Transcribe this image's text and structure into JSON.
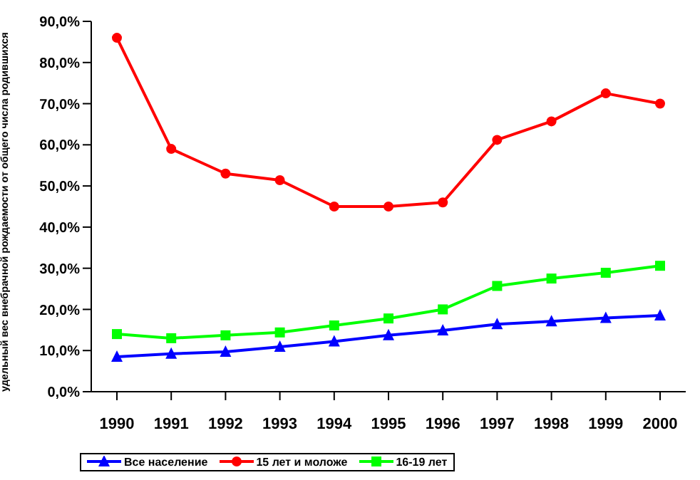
{
  "chart_data": {
    "type": "line",
    "ylabel": "удельный вес внебрачной рождаемости от общего числа родившихся",
    "categories": [
      "1990",
      "1991",
      "1992",
      "1993",
      "1994",
      "1995",
      "1996",
      "1997",
      "1998",
      "1999",
      "2000"
    ],
    "series": [
      {
        "name": "Все население",
        "color": "#0000ff",
        "marker": "triangle",
        "values": [
          8.5,
          9.2,
          9.7,
          10.9,
          12.2,
          13.7,
          14.9,
          16.4,
          17.1,
          17.9,
          18.5
        ]
      },
      {
        "name": "15 лет и моложе",
        "color": "#ff0000",
        "marker": "circle",
        "values": [
          86,
          59,
          53,
          51.4,
          45,
          45,
          46,
          61.2,
          65.7,
          72.5,
          70
        ]
      },
      {
        "name": "16-19 лет",
        "color": "#00ff00",
        "marker": "square",
        "values": [
          14,
          13,
          13.7,
          14.4,
          16.1,
          17.8,
          20,
          25.7,
          27.5,
          28.9,
          30.6
        ]
      }
    ],
    "ylim": [
      0,
      90
    ],
    "yticks": [
      {
        "value": 0,
        "label": "0,0%"
      },
      {
        "value": 10,
        "label": "10,0%"
      },
      {
        "value": 20,
        "label": "20,0%"
      },
      {
        "value": 30,
        "label": "30,0%"
      },
      {
        "value": 40,
        "label": "40,0%"
      },
      {
        "value": 50,
        "label": "50,0%"
      },
      {
        "value": 60,
        "label": "60,0%"
      },
      {
        "value": 70,
        "label": "70,0%"
      },
      {
        "value": 80,
        "label": "80,0%"
      },
      {
        "value": 90,
        "label": "90,0%"
      }
    ],
    "grid": false,
    "legend": "bottom",
    "line_style": "solid"
  }
}
